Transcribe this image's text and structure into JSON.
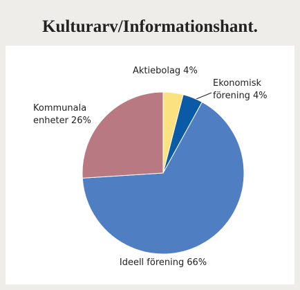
{
  "chart_data": {
    "type": "pie",
    "title": "Kulturarv/Informationshant.",
    "categories": [
      "Aktiebolag",
      "Ekonomisk förening",
      "Ideell förening",
      "Kommunala enheter"
    ],
    "values": [
      4,
      4,
      66,
      26
    ],
    "value_labels": [
      "4%",
      "4%",
      "66%",
      "26%"
    ],
    "colors": [
      "#fbe17f",
      "#0b5aa6",
      "#4f7ec3",
      "#b97982"
    ]
  }
}
